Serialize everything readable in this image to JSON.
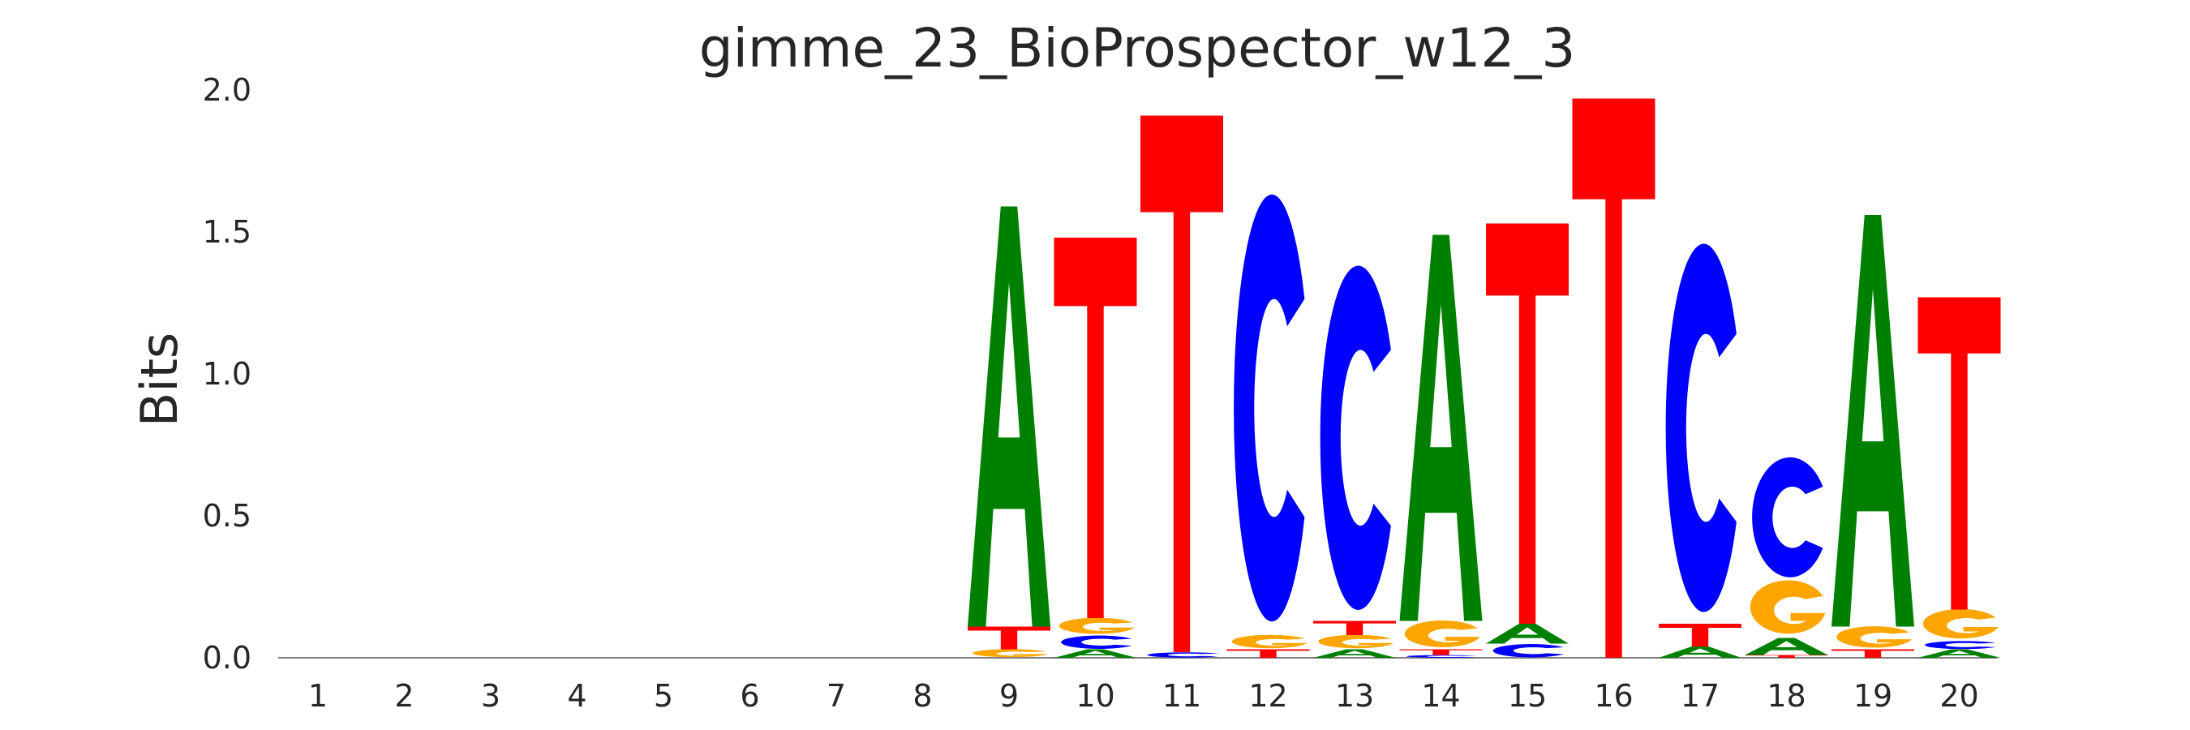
{
  "chart_data": {
    "type": "sequence-logo",
    "title": "gimme_23_BioProspector_w12_3",
    "ylabel": "Bits",
    "xlabel": "",
    "ylim": [
      0,
      2.0
    ],
    "yticks": [
      "0.0",
      "0.5",
      "1.0",
      "1.5",
      "2.0"
    ],
    "positions": [
      "1",
      "2",
      "3",
      "4",
      "5",
      "6",
      "7",
      "8",
      "9",
      "10",
      "11",
      "12",
      "13",
      "14",
      "15",
      "16",
      "17",
      "18",
      "19",
      "20"
    ],
    "colors": {
      "A": "#008000",
      "C": "#0000ff",
      "G": "#ffa500",
      "T": "#ff0000"
    },
    "stacks": [
      [],
      [],
      [],
      [],
      [],
      [],
      [],
      [],
      [
        {
          "letter": "G",
          "bits": 0.03
        },
        {
          "letter": "T",
          "bits": 0.08
        },
        {
          "letter": "A",
          "bits": 1.48
        }
      ],
      [
        {
          "letter": "A",
          "bits": 0.03
        },
        {
          "letter": "C",
          "bits": 0.05
        },
        {
          "letter": "G",
          "bits": 0.06
        },
        {
          "letter": "T",
          "bits": 1.34
        }
      ],
      [
        {
          "letter": "C",
          "bits": 0.02
        },
        {
          "letter": "T",
          "bits": 1.89
        }
      ],
      [
        {
          "letter": "T",
          "bits": 0.03
        },
        {
          "letter": "G",
          "bits": 0.05
        },
        {
          "letter": "C",
          "bits": 1.6
        }
      ],
      [
        {
          "letter": "A",
          "bits": 0.03
        },
        {
          "letter": "G",
          "bits": 0.05
        },
        {
          "letter": "T",
          "bits": 0.05
        },
        {
          "letter": "C",
          "bits": 1.29
        }
      ],
      [
        {
          "letter": "C",
          "bits": 0.01
        },
        {
          "letter": "T",
          "bits": 0.02
        },
        {
          "letter": "G",
          "bits": 0.1
        },
        {
          "letter": "A",
          "bits": 1.36
        }
      ],
      [
        {
          "letter": "C",
          "bits": 0.05
        },
        {
          "letter": "A",
          "bits": 0.07
        },
        {
          "letter": "T",
          "bits": 1.41
        }
      ],
      [
        {
          "letter": "T",
          "bits": 1.97
        }
      ],
      [
        {
          "letter": "A",
          "bits": 0.04
        },
        {
          "letter": "T",
          "bits": 0.08
        },
        {
          "letter": "C",
          "bits": 1.38
        }
      ],
      [
        {
          "letter": "T",
          "bits": 0.01
        },
        {
          "letter": "A",
          "bits": 0.06
        },
        {
          "letter": "G",
          "bits": 0.2
        },
        {
          "letter": "C",
          "bits": 0.45
        }
      ],
      [
        {
          "letter": "T",
          "bits": 0.03
        },
        {
          "letter": "G",
          "bits": 0.08
        },
        {
          "letter": "A",
          "bits": 1.45
        }
      ],
      [
        {
          "letter": "A",
          "bits": 0.03
        },
        {
          "letter": "C",
          "bits": 0.03
        },
        {
          "letter": "G",
          "bits": 0.11
        },
        {
          "letter": "T",
          "bits": 1.1
        }
      ]
    ],
    "grid": false,
    "legend": "none"
  }
}
